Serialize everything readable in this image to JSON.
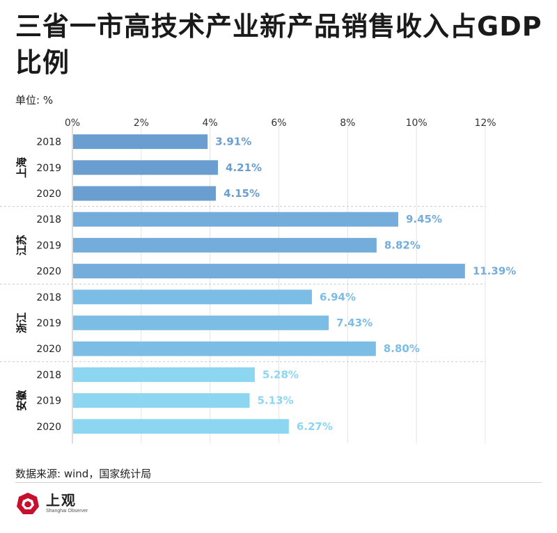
{
  "title": "三省一市高技术产业新产品销售收入占GDP比例",
  "unit_label": "单位: %",
  "source": "数据来源: wind，国家统计局",
  "logo": {
    "cn": "上观",
    "en": "Shanghai Observer",
    "color": "#c8102e"
  },
  "chart_data": {
    "type": "bar",
    "orientation": "horizontal",
    "xlim": [
      0,
      12
    ],
    "xticks": [
      0,
      2,
      4,
      6,
      8,
      10,
      12
    ],
    "tick_suffix": "%",
    "groups": [
      {
        "name": "上海",
        "color": "#6a9ed0",
        "items": [
          {
            "year": "2018",
            "value": 3.91,
            "label": "3.91%"
          },
          {
            "year": "2019",
            "value": 4.21,
            "label": "4.21%"
          },
          {
            "year": "2020",
            "value": 4.15,
            "label": "4.15%"
          }
        ]
      },
      {
        "name": "江苏",
        "color": "#74addb",
        "items": [
          {
            "year": "2018",
            "value": 9.45,
            "label": "9.45%"
          },
          {
            "year": "2019",
            "value": 8.82,
            "label": "8.82%"
          },
          {
            "year": "2020",
            "value": 11.39,
            "label": "11.39%"
          }
        ]
      },
      {
        "name": "浙江",
        "color": "#7cbde6",
        "items": [
          {
            "year": "2018",
            "value": 6.94,
            "label": "6.94%"
          },
          {
            "year": "2019",
            "value": 7.43,
            "label": "7.43%"
          },
          {
            "year": "2020",
            "value": 8.8,
            "label": "8.80%"
          }
        ]
      },
      {
        "name": "安徽",
        "color": "#8cd6f2",
        "items": [
          {
            "year": "2018",
            "value": 5.28,
            "label": "5.28%"
          },
          {
            "year": "2019",
            "value": 5.13,
            "label": "5.13%"
          },
          {
            "year": "2020",
            "value": 6.27,
            "label": "6.27%"
          }
        ]
      }
    ]
  }
}
